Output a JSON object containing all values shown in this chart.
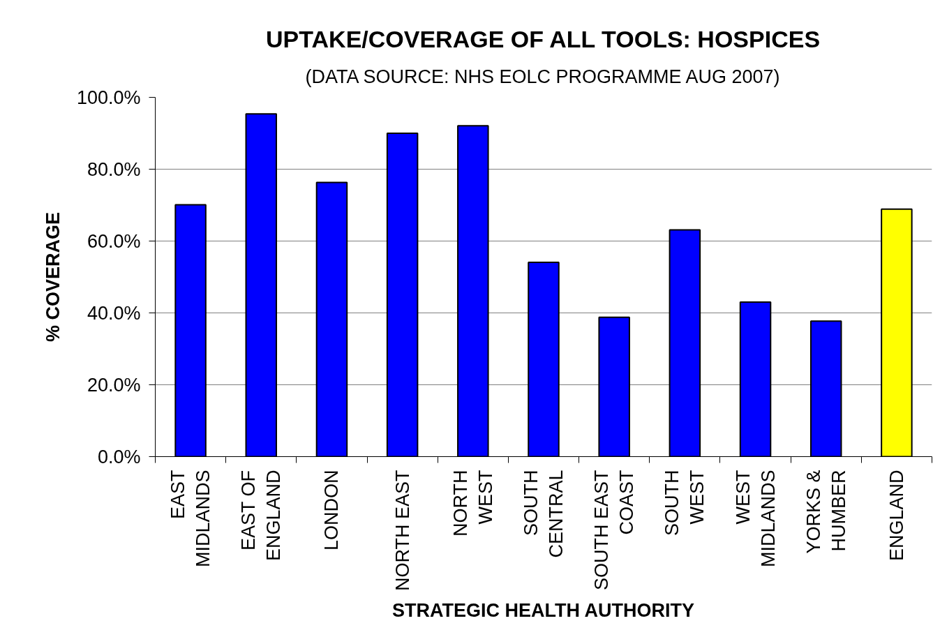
{
  "chart_data": {
    "type": "bar",
    "title": "UPTAKE/COVERAGE OF ALL TOOLS: HOSPICES",
    "subtitle": "(DATA SOURCE: NHS EOLC PROGRAMME AUG 2007)",
    "xlabel": "STRATEGIC HEALTH AUTHORITY",
    "ylabel": "% COVERAGE",
    "categories": [
      "EAST\nMIDLANDS",
      "EAST OF\nENGLAND",
      "LONDON",
      "NORTH EAST",
      "NORTH\nWEST",
      "SOUTH\nCENTRAL",
      "SOUTH EAST\nCOAST",
      "SOUTH\nWEST",
      "WEST\nMIDLANDS",
      "YORKS &\nHUMBER",
      "ENGLAND"
    ],
    "values": [
      70.1,
      95.4,
      76.3,
      90.0,
      92.1,
      54.1,
      38.8,
      63.1,
      43.0,
      37.7,
      68.9
    ],
    "colors": [
      "#0000ff",
      "#0000ff",
      "#0000ff",
      "#0000ff",
      "#0000ff",
      "#0000ff",
      "#0000ff",
      "#0000ff",
      "#0000ff",
      "#0000ff",
      "#ffff00"
    ],
    "ylim": [
      0,
      100
    ],
    "yticks": [
      {
        "value": 0,
        "label": "0.0%"
      },
      {
        "value": 20,
        "label": "20.0%"
      },
      {
        "value": 40,
        "label": "40.0%"
      },
      {
        "value": 60,
        "label": "60.0%"
      },
      {
        "value": 80,
        "label": "80.0%"
      },
      {
        "value": 100,
        "label": "100.0%"
      }
    ],
    "grid": "y"
  }
}
